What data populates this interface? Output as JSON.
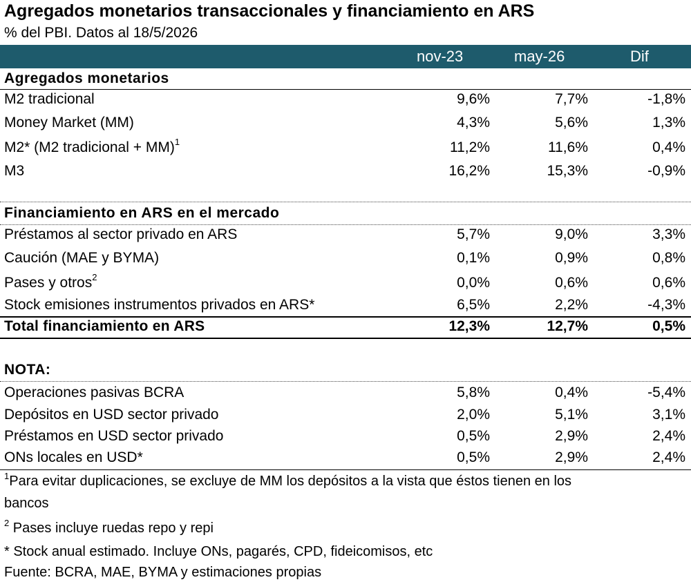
{
  "title": "Agregados monetarios transaccionales y financiamiento en ARS",
  "subtitle": "% del PBI. Datos al 18/5/2026",
  "columns": [
    "nov-23",
    "may-26",
    "Dif"
  ],
  "sections": {
    "monetarios": {
      "title": "Agregados monetarios",
      "rows": [
        {
          "label": "M2 tradicional",
          "sup": "",
          "v1": "9,6%",
          "v2": "7,7%",
          "v3": "-1,8%"
        },
        {
          "label": "Money Market (MM)",
          "sup": "",
          "v1": "4,3%",
          "v2": "5,6%",
          "v3": "1,3%"
        },
        {
          "label": "M2* (M2 tradicional + MM)",
          "sup": "1",
          "v1": "11,2%",
          "v2": "11,6%",
          "v3": "0,4%"
        },
        {
          "label": "M3",
          "sup": "",
          "v1": "16,2%",
          "v2": "15,3%",
          "v3": "-0,9%"
        }
      ]
    },
    "financiamiento": {
      "title": "Financiamiento en ARS en el mercado",
      "rows": [
        {
          "label": "Préstamos al sector privado en ARS",
          "sup": "",
          "v1": "5,7%",
          "v2": "9,0%",
          "v3": "3,3%"
        },
        {
          "label": "Caución (MAE y BYMA)",
          "sup": "",
          "v1": "0,1%",
          "v2": "0,9%",
          "v3": "0,8%"
        },
        {
          "label": "Pases y otros",
          "sup": "2",
          "v1": "0,0%",
          "v2": "0,6%",
          "v3": "0,6%"
        },
        {
          "label": "Stock emisiones instrumentos privados en ARS*",
          "sup": "",
          "v1": "6,5%",
          "v2": "2,2%",
          "v3": "-4,3%"
        }
      ],
      "total": {
        "label": "Total financiamiento en ARS",
        "v1": "12,3%",
        "v2": "12,7%",
        "v3": "0,5%"
      }
    },
    "nota": {
      "title": "NOTA:",
      "rows": [
        {
          "label": "Operaciones pasivas BCRA",
          "v1": "5,8%",
          "v2": "0,4%",
          "v3": "-5,4%"
        },
        {
          "label": "Depósitos en USD sector privado",
          "v1": "2,0%",
          "v2": "5,1%",
          "v3": "3,1%"
        },
        {
          "label": "Préstamos en USD sector privado",
          "v1": "0,5%",
          "v2": "2,9%",
          "v3": "2,4%"
        },
        {
          "label": "ONs locales en USD*",
          "v1": "0,5%",
          "v2": "2,9%",
          "v3": "2,4%"
        }
      ]
    }
  },
  "footnotes": {
    "f1_mark": "1",
    "f1_line1": "Para evitar duplicaciones, se excluye de MM los depósitos a la vista que éstos tienen en los",
    "f1_line2": "bancos",
    "f2_mark": "2",
    "f2": "Pases incluye ruedas repo y repi",
    "f3": "* Stock anual estimado. Incluye ONs, pagarés, CPD, fideicomisos, etc",
    "source": "Fuente: BCRA, MAE, BYMA y estimaciones propias"
  },
  "colors": {
    "header_bg": "#1e5b6c",
    "header_text": "#ffffff"
  },
  "chart_data": {
    "type": "table",
    "title": "Agregados monetarios transaccionales y financiamiento en ARS",
    "subtitle": "% del PBI. Datos al 18/5/2026",
    "columns": [
      "nov-23",
      "may-26",
      "Dif"
    ],
    "rows": [
      {
        "group": "Agregados monetarios",
        "label": "M2 tradicional",
        "values": [
          9.6,
          7.7,
          -1.8
        ]
      },
      {
        "group": "Agregados monetarios",
        "label": "Money Market (MM)",
        "values": [
          4.3,
          5.6,
          1.3
        ]
      },
      {
        "group": "Agregados monetarios",
        "label": "M2* (M2 tradicional + MM)",
        "values": [
          11.2,
          11.6,
          0.4
        ]
      },
      {
        "group": "Agregados monetarios",
        "label": "M3",
        "values": [
          16.2,
          15.3,
          -0.9
        ]
      },
      {
        "group": "Financiamiento en ARS en el mercado",
        "label": "Préstamos al sector privado en ARS",
        "values": [
          5.7,
          9.0,
          3.3
        ]
      },
      {
        "group": "Financiamiento en ARS en el mercado",
        "label": "Caución (MAE y BYMA)",
        "values": [
          0.1,
          0.9,
          0.8
        ]
      },
      {
        "group": "Financiamiento en ARS en el mercado",
        "label": "Pases y otros",
        "values": [
          0.0,
          0.6,
          0.6
        ]
      },
      {
        "group": "Financiamiento en ARS en el mercado",
        "label": "Stock emisiones instrumentos privados en ARS*",
        "values": [
          6.5,
          2.2,
          -4.3
        ]
      },
      {
        "group": "Financiamiento en ARS en el mercado",
        "label": "Total financiamiento en ARS",
        "values": [
          12.3,
          12.7,
          0.5
        ]
      },
      {
        "group": "NOTA:",
        "label": "Operaciones pasivas BCRA",
        "values": [
          5.8,
          0.4,
          -5.4
        ]
      },
      {
        "group": "NOTA:",
        "label": "Depósitos en USD sector privado",
        "values": [
          2.0,
          5.1,
          3.1
        ]
      },
      {
        "group": "NOTA:",
        "label": "Préstamos en USD sector privado",
        "values": [
          0.5,
          2.9,
          2.4
        ]
      },
      {
        "group": "NOTA:",
        "label": "ONs locales en USD*",
        "values": [
          0.5,
          2.9,
          2.4
        ]
      }
    ]
  }
}
